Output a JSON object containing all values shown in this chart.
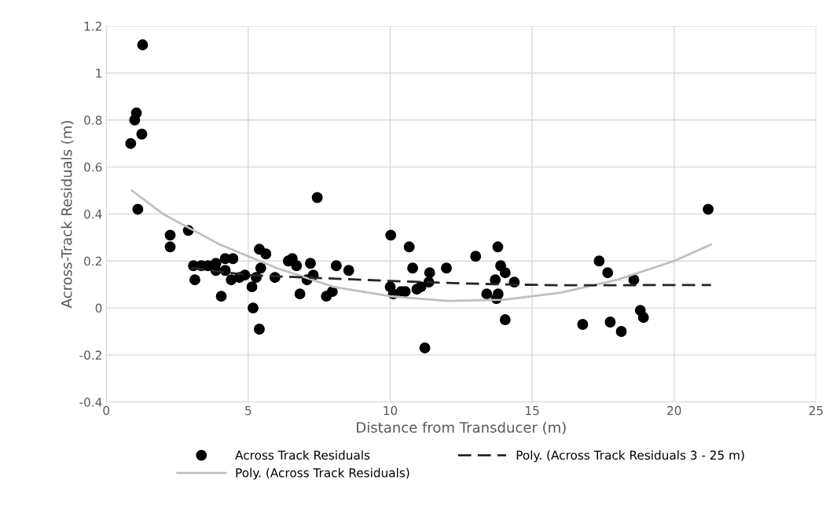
{
  "chart_data": {
    "type": "scatter",
    "xlabel": "Distance from Transducer (m)",
    "ylabel": "Across-Track Residuals (m)",
    "xlim": [
      0,
      25
    ],
    "xticks": [
      0,
      5,
      10,
      15,
      20,
      25
    ],
    "ylim": [
      -0.4,
      1.2
    ],
    "yticks": [
      -0.4,
      -0.2,
      0,
      0.2,
      0.4,
      0.6,
      0.8,
      1,
      1.2
    ],
    "grid": true,
    "legend": "bottom",
    "series": [
      {
        "name": "Across Track Residuals",
        "marker": "circle",
        "color": "#000000",
        "x": [
          0.86,
          1.0,
          1.06,
          1.25,
          1.28,
          1.11,
          2.25,
          2.25,
          2.89,
          3.07,
          3.35,
          3.58,
          3.12,
          3.86,
          3.86,
          4.19,
          4.46,
          4.19,
          4.4,
          4.05,
          4.69,
          4.88,
          5.13,
          5.17,
          5.39,
          5.62,
          5.44,
          5.28,
          5.39,
          5.94,
          6.41,
          6.55,
          6.7,
          7.19,
          7.29,
          7.07,
          6.82,
          7.43,
          7.75,
          7.96,
          8.1,
          8.54,
          10.02,
          10.67,
          10.79,
          11.22,
          11.39,
          11.36,
          10.0,
          10.11,
          10.39,
          10.53,
          10.94,
          11.08,
          11.98,
          13.01,
          13.4,
          13.79,
          13.89,
          14.05,
          13.7,
          14.37,
          13.8,
          13.74,
          14.05,
          16.78,
          17.36,
          17.66,
          17.75,
          18.14,
          18.58,
          18.81,
          18.92,
          21.2
        ],
        "values": [
          0.7,
          0.8,
          0.83,
          0.74,
          1.12,
          0.42,
          0.31,
          0.26,
          0.33,
          0.18,
          0.18,
          0.18,
          0.12,
          0.19,
          0.16,
          0.21,
          0.21,
          0.16,
          0.12,
          0.05,
          0.13,
          0.14,
          0.09,
          0.0,
          0.25,
          0.23,
          0.17,
          0.13,
          -0.09,
          0.13,
          0.2,
          0.21,
          0.18,
          0.19,
          0.14,
          0.12,
          0.06,
          0.47,
          0.05,
          0.07,
          0.18,
          0.16,
          0.31,
          0.26,
          0.17,
          -0.17,
          0.15,
          0.11,
          0.09,
          0.06,
          0.07,
          0.07,
          0.08,
          0.09,
          0.17,
          0.22,
          0.06,
          0.26,
          0.18,
          0.15,
          0.12,
          0.11,
          0.06,
          0.04,
          -0.05,
          -0.07,
          0.2,
          0.15,
          -0.06,
          -0.1,
          0.12,
          -0.01,
          -0.04,
          0.42
        ]
      },
      {
        "name": "Poly. (Across Track Residuals)",
        "type": "line",
        "color": "#bfbfbf",
        "line_style": "solid",
        "x": [
          0.9,
          2,
          4,
          6,
          8,
          10,
          12,
          14,
          16,
          18,
          20,
          21.3
        ],
        "values": [
          0.5,
          0.4,
          0.27,
          0.17,
          0.09,
          0.05,
          0.03,
          0.035,
          0.065,
          0.12,
          0.2,
          0.27
        ]
      },
      {
        "name": "Poly. (Across Track Residuals 3 - 25 m)",
        "type": "line",
        "color": "#262626",
        "line_style": "dashed",
        "x": [
          3,
          5,
          8,
          10,
          12,
          14,
          16,
          18,
          21.3
        ],
        "values": [
          0.17,
          0.14,
          0.125,
          0.115,
          0.107,
          0.1,
          0.097,
          0.097,
          0.098
        ]
      }
    ]
  }
}
